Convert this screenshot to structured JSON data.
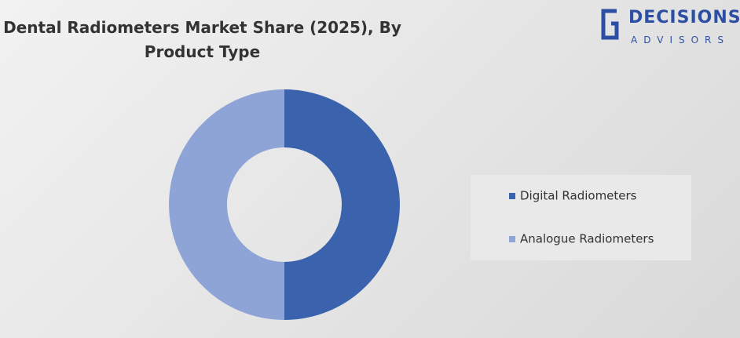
{
  "chart_data": {
    "type": "donut",
    "title": "Dental Radiometers Market Share (2025), By Product Type",
    "categories": [
      "Digital Radiometers",
      "Analogue Radiometers"
    ],
    "values": [
      50,
      50
    ],
    "colors": [
      "#3a62ad",
      "#8fa4d6"
    ],
    "legend": "right"
  },
  "logo": {
    "name": "DECISIONS",
    "tagline": "ADVISORS"
  }
}
